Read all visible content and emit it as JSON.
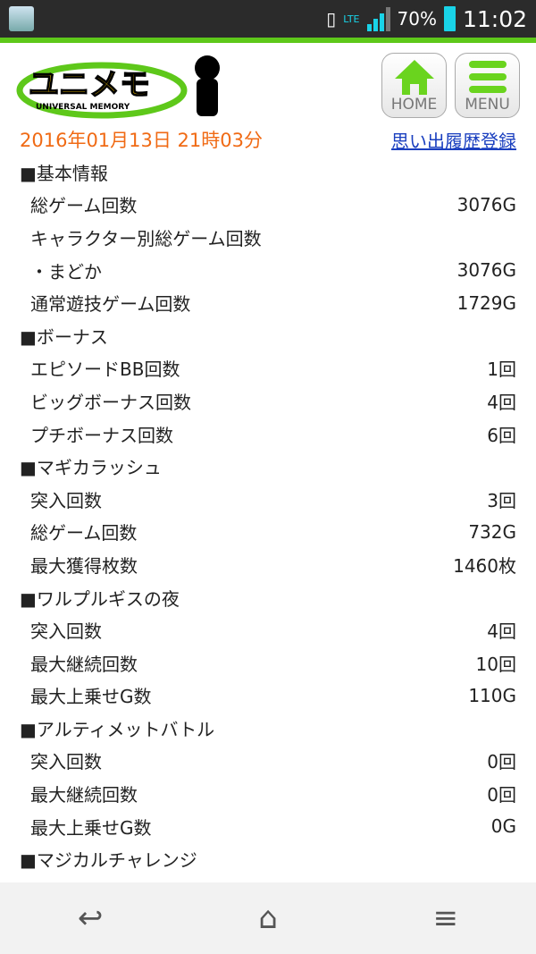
{
  "status": {
    "battery": "70%",
    "time": "11:02",
    "network": "LTE"
  },
  "header": {
    "logo_text": "ユニメモ UNIVERSAL MEMORY",
    "home_label": "HOME",
    "menu_label": "MENU"
  },
  "date": "2016年01月13日 21時03分",
  "history_link": "思い出履歴登録",
  "rows": [
    {
      "type": "sec",
      "label": "■基本情報",
      "value": ""
    },
    {
      "type": "item",
      "label": "総ゲーム回数",
      "value": "3076G"
    },
    {
      "type": "item",
      "label": "キャラクター別総ゲーム回数",
      "value": ""
    },
    {
      "type": "item",
      "label": "・まどか",
      "value": "3076G"
    },
    {
      "type": "item",
      "label": "通常遊技ゲーム回数",
      "value": "1729G"
    },
    {
      "type": "sec",
      "label": "■ボーナス",
      "value": ""
    },
    {
      "type": "item",
      "label": "エピソードBB回数",
      "value": "1回"
    },
    {
      "type": "item",
      "label": "ビッグボーナス回数",
      "value": "4回"
    },
    {
      "type": "item",
      "label": "プチボーナス回数",
      "value": "6回"
    },
    {
      "type": "sec",
      "label": "■マギカラッシュ",
      "value": ""
    },
    {
      "type": "item",
      "label": "突入回数",
      "value": "3回"
    },
    {
      "type": "item",
      "label": "総ゲーム回数",
      "value": "732G"
    },
    {
      "type": "item",
      "label": "最大獲得枚数",
      "value": "1460枚"
    },
    {
      "type": "sec",
      "label": "■ワルプルギスの夜",
      "value": ""
    },
    {
      "type": "item",
      "label": "突入回数",
      "value": "4回"
    },
    {
      "type": "item",
      "label": "最大継続回数",
      "value": "10回"
    },
    {
      "type": "item",
      "label": "最大上乗せG数",
      "value": "110G"
    },
    {
      "type": "sec",
      "label": "■アルティメットバトル",
      "value": ""
    },
    {
      "type": "item",
      "label": "突入回数",
      "value": "0回"
    },
    {
      "type": "item",
      "label": "最大継続回数",
      "value": "0回"
    },
    {
      "type": "item",
      "label": "最大上乗せG数",
      "value": "0G"
    },
    {
      "type": "sec",
      "label": "■マジカルチャレンジ",
      "value": ""
    }
  ],
  "colors": {
    "accent": "#5ec81a",
    "date": "#f06a14",
    "link": "#1a3fbf"
  }
}
